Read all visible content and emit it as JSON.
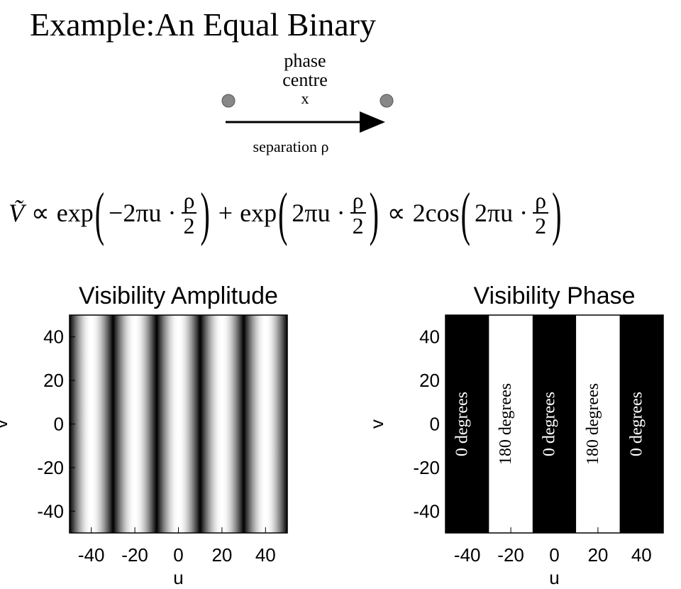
{
  "title": "Example:An Equal Binary",
  "diagram": {
    "phase_label": "phase",
    "centre_label": "centre",
    "x_label": "x",
    "separation_label": "separation ρ"
  },
  "equation": {
    "lhs": "Ṽ",
    "operators": [
      "∝",
      "+",
      "∝"
    ],
    "terms": [
      {
        "func": "exp",
        "arg": "−2πu ·",
        "num": "ρ",
        "den": "2"
      },
      {
        "func": "exp",
        "arg": "2πu ·",
        "num": "ρ",
        "den": "2"
      },
      {
        "func": "2cos",
        "arg": "2πu ·",
        "num": "ρ",
        "den": "2"
      }
    ]
  },
  "plots": [
    {
      "kind": "amplitude",
      "title": "Visibility Amplitude",
      "xlabel": "u",
      "ylabel": "v",
      "xlim": [
        -50,
        50
      ],
      "ylim": [
        -50,
        50
      ],
      "xticks": [
        -40,
        -20,
        0,
        20,
        40
      ],
      "yticks": [
        -40,
        -20,
        0,
        20,
        40
      ],
      "minima": [
        -30,
        -10,
        10,
        30
      ]
    },
    {
      "kind": "phase",
      "title": "Visibility Phase",
      "xlabel": "u",
      "ylabel": "v",
      "xlim": [
        -50,
        50
      ],
      "ylim": [
        -50,
        50
      ],
      "xticks": [
        -40,
        -20,
        0,
        20,
        40
      ],
      "yticks": [
        -40,
        -20,
        0,
        20,
        40
      ],
      "bands": [
        {
          "from": -50,
          "to": -30,
          "label": "0 degrees",
          "color": "#000000",
          "label_color": "#ffffff"
        },
        {
          "from": -30,
          "to": -10,
          "label": "180 degrees",
          "color": "#ffffff",
          "label_color": "#000000"
        },
        {
          "from": -10,
          "to": 10,
          "label": "0 degrees",
          "color": "#000000",
          "label_color": "#ffffff"
        },
        {
          "from": 10,
          "to": 30,
          "label": "180 degrees",
          "color": "#ffffff",
          "label_color": "#000000"
        },
        {
          "from": 30,
          "to": 50,
          "label": "0 degrees",
          "color": "#000000",
          "label_color": "#ffffff"
        }
      ]
    }
  ]
}
